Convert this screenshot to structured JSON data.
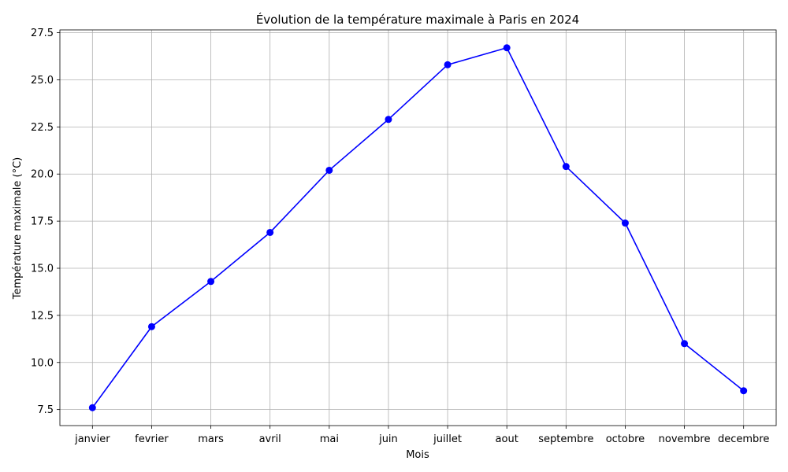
{
  "chart_data": {
    "type": "line",
    "title": "Évolution de la température maximale à Paris en 2024",
    "xlabel": "Mois",
    "ylabel": "Température maximale (°C)",
    "categories": [
      "janvier",
      "fevrier",
      "mars",
      "avril",
      "mai",
      "juin",
      "juillet",
      "aout",
      "septembre",
      "octobre",
      "novembre",
      "decembre"
    ],
    "series": [
      {
        "values": [
          7.6,
          11.9,
          14.3,
          16.9,
          20.2,
          22.9,
          25.8,
          26.7,
          20.4,
          17.4,
          11.0,
          8.5
        ],
        "color": "#0000ff",
        "marker": "circle"
      }
    ],
    "ylim": [
      6.65,
      27.65
    ],
    "yticks": [
      "7.5",
      "10.0",
      "12.5",
      "15.0",
      "17.5",
      "20.0",
      "22.5",
      "25.0",
      "27.5"
    ],
    "grid": true,
    "legend": "none"
  }
}
